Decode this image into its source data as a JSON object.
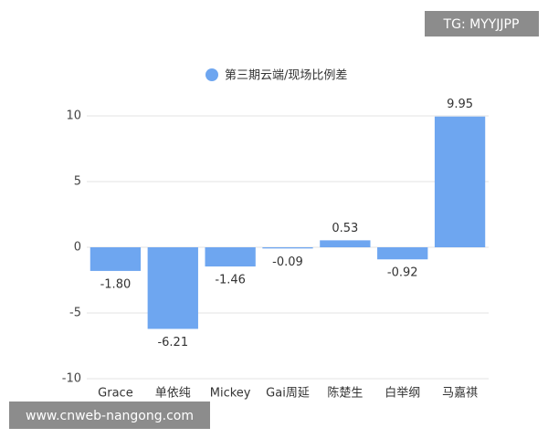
{
  "chart_data": {
    "type": "bar",
    "legend": "第三期云端/现场比例差",
    "legend_position": "top",
    "categories": [
      "Grace",
      "单依纯",
      "Mickey",
      "Gai周延",
      "陈楚生",
      "白举纲",
      "马嘉祺"
    ],
    "values": [
      -1.8,
      -6.21,
      -1.46,
      -0.09,
      0.53,
      -0.92,
      9.95
    ],
    "value_labels": [
      "-1.80",
      "-6.21",
      "-1.46",
      "-0.09",
      "0.53",
      "-0.92",
      "9.95"
    ],
    "color": "#6ea6f0",
    "ylim": [
      -10,
      10
    ],
    "yticks": [
      -10,
      -5,
      0,
      5,
      10
    ],
    "grid": true
  },
  "watermarks": [
    "TG: MYYJJPP",
    "www.cnweb-nangong.com"
  ]
}
